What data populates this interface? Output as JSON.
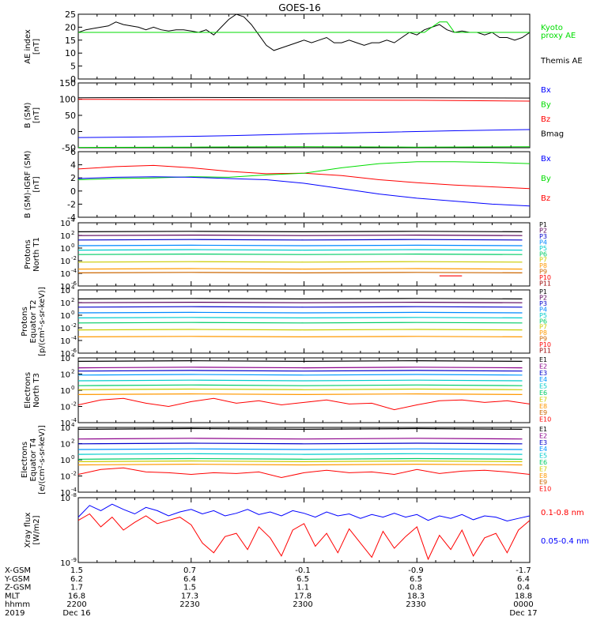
{
  "title": "GOES-16",
  "colors": {
    "black": "#000000",
    "blue": "#0000ff",
    "red": "#ff0000",
    "green": "#00dd00",
    "p_series": [
      "#000000",
      "#5a005a",
      "#0000cc",
      "#0088ff",
      "#00cccc",
      "#00cc66",
      "#cccc00",
      "#ff9900",
      "#cc6600",
      "#ff0000",
      "#990000"
    ],
    "e_series": [
      "#000000",
      "#8b008b",
      "#0000cc",
      "#0099ff",
      "#00cccc",
      "#00cc66",
      "#cccc00",
      "#ff9900",
      "#cc6600",
      "#ff0000",
      "#990000"
    ]
  },
  "chart_data": [
    {
      "id": "ae",
      "type": "line",
      "ylabel": [
        "AE index",
        "[nT]"
      ],
      "ylim": [
        0,
        25
      ],
      "yticks": [
        "25",
        "20",
        "15",
        "10",
        "5",
        "0"
      ],
      "legend": [
        {
          "label": "Kyoto",
          "color": "green"
        },
        {
          "label": "proxy AE",
          "color": "green"
        },
        {
          "label": "Themis AE",
          "color": "black"
        }
      ],
      "series": [
        {
          "name": "Themis AE",
          "color": "black",
          "x": [
            0,
            2,
            4,
            6,
            8,
            10,
            12,
            14,
            16,
            18,
            20,
            22,
            24,
            26,
            28,
            30,
            32,
            34,
            36,
            38,
            40,
            42,
            44,
            46,
            48,
            50,
            52,
            54,
            56,
            58,
            60,
            62,
            64,
            66,
            68,
            70,
            72,
            74,
            76,
            78,
            80,
            82,
            84,
            86,
            88,
            90,
            92,
            94,
            96,
            98,
            100,
            102,
            104,
            106,
            108,
            110,
            112,
            114,
            116,
            118,
            120
          ],
          "values": [
            18,
            19,
            19.5,
            20,
            20.5,
            22,
            21,
            20.5,
            20,
            19,
            20,
            19,
            18.5,
            19,
            19,
            18.5,
            18,
            19,
            17,
            20,
            23,
            25,
            24,
            21,
            17,
            13,
            11,
            12,
            13,
            14,
            15,
            14,
            15,
            16,
            14,
            14,
            15,
            14,
            13,
            14,
            14,
            15,
            14,
            16,
            18,
            17,
            19,
            20,
            21,
            19,
            18,
            18.5,
            18,
            18,
            17,
            18,
            16,
            16,
            15,
            16,
            18
          ]
        },
        {
          "name": "Kyoto proxy AE",
          "color": "green",
          "x": [
            0,
            92,
            94,
            96,
            98,
            100,
            120
          ],
          "values": [
            18,
            18,
            20,
            22,
            22,
            18,
            18
          ]
        }
      ]
    },
    {
      "id": "b_sm",
      "type": "line",
      "ylabel": [
        "B (SM)",
        "[nT]"
      ],
      "ylim": [
        -55,
        155
      ],
      "yticks": [
        "150",
        "100",
        "50",
        "0",
        "-50"
      ],
      "legend": [
        {
          "label": "Bx",
          "color": "blue"
        },
        {
          "label": "By",
          "color": "green"
        },
        {
          "label": "Bz",
          "color": "red"
        },
        {
          "label": "Bmag",
          "color": "black"
        }
      ],
      "series": [
        {
          "name": "Bmag",
          "color": "black",
          "x": [
            0,
            30,
            60,
            90,
            120
          ],
          "values": [
            107,
            108,
            107,
            107,
            106
          ]
        },
        {
          "name": "Bz",
          "color": "red",
          "x": [
            0,
            30,
            60,
            90,
            110,
            120
          ],
          "values": [
            102,
            101,
            100,
            99,
            97,
            96
          ]
        },
        {
          "name": "Bx",
          "color": "blue",
          "x": [
            0,
            20,
            40,
            60,
            80,
            100,
            120
          ],
          "values": [
            -22,
            -20,
            -16,
            -10,
            -5,
            0,
            4
          ]
        },
        {
          "name": "By",
          "color": "green",
          "x": [
            0,
            30,
            60,
            90,
            120
          ],
          "values": [
            -54,
            -53,
            -52,
            -53,
            -52
          ]
        }
      ]
    },
    {
      "id": "b_igrf",
      "type": "line",
      "ylabel": [
        "B (SM)-IGRF (SM)",
        "[nT]"
      ],
      "ylim": [
        -4.5,
        6.5
      ],
      "yticks": [
        "6",
        "4",
        "2",
        "0",
        "-2",
        "-4"
      ],
      "legend": [
        {
          "label": "Bx",
          "color": "blue"
        },
        {
          "label": "By",
          "color": "green"
        },
        {
          "label": "Bz",
          "color": "red"
        }
      ],
      "series": [
        {
          "name": "Bz",
          "color": "red",
          "x": [
            0,
            10,
            20,
            30,
            40,
            50,
            60,
            70,
            80,
            90,
            100,
            110,
            120
          ],
          "values": [
            3.6,
            4.0,
            4.2,
            3.8,
            3.2,
            2.8,
            2.9,
            2.5,
            1.8,
            1.3,
            0.9,
            0.6,
            0.3
          ]
        },
        {
          "name": "By",
          "color": "green",
          "x": [
            0,
            10,
            20,
            30,
            40,
            50,
            60,
            70,
            80,
            90,
            100,
            110,
            120
          ],
          "values": [
            1.8,
            2.0,
            2.1,
            2.3,
            2.2,
            2.6,
            2.9,
            3.8,
            4.5,
            4.8,
            4.8,
            4.7,
            4.5
          ]
        },
        {
          "name": "Bx",
          "color": "blue",
          "x": [
            0,
            10,
            20,
            30,
            40,
            50,
            60,
            70,
            80,
            90,
            100,
            110,
            120
          ],
          "values": [
            2.0,
            2.2,
            2.3,
            2.2,
            2.0,
            1.8,
            1.2,
            0.3,
            -0.6,
            -1.3,
            -1.8,
            -2.3,
            -2.6
          ]
        }
      ]
    },
    {
      "id": "protons_t1",
      "type": "line",
      "log": true,
      "ylabel": [
        "Protons",
        "North T1"
      ],
      "ylim": [
        -6,
        4
      ],
      "yticks": [
        {
          "b": "10",
          "e": "4"
        },
        {
          "b": "10",
          "e": "2"
        },
        {
          "b": "10",
          "e": "0"
        },
        {
          "b": "10",
          "e": "-2"
        },
        {
          "b": "10",
          "e": "-4"
        },
        {
          "b": "10",
          "e": "-6"
        }
      ],
      "legend": [
        "P1",
        "P2",
        "P3",
        "P4",
        "P5",
        "P6",
        "P7",
        "P8",
        "P9",
        "P10",
        "P11"
      ],
      "levels": [
        2.6,
        2.0,
        1.3,
        0.4,
        -0.3,
        -1.0,
        -2.2,
        -3.3,
        -3.9
      ],
      "extra": [
        {
          "color_index": 9,
          "x": [
            96,
            102
          ],
          "values": [
            -4.4,
            -4.4
          ]
        }
      ]
    },
    {
      "id": "protons_t2",
      "type": "line",
      "log": true,
      "ylabel": [
        "Protons",
        "Equator T2",
        "[p/(cm²-s-sr-keV)]"
      ],
      "ylim": [
        -6,
        4
      ],
      "yticks": [
        {
          "b": "10",
          "e": "4"
        },
        {
          "b": "10",
          "e": "2"
        },
        {
          "b": "10",
          "e": "0"
        },
        {
          "b": "10",
          "e": "-2"
        },
        {
          "b": "10",
          "e": "-4"
        },
        {
          "b": "10",
          "e": "-6"
        }
      ],
      "legend": [
        "P1",
        "P2",
        "P3",
        "P4",
        "P5",
        "P6",
        "P7",
        "P8",
        "P9",
        "P10",
        "P11"
      ],
      "levels": [
        2.6,
        2.0,
        1.3,
        0.4,
        -0.4,
        -1.2,
        -2.3,
        -3.4
      ]
    },
    {
      "id": "electrons_t3",
      "type": "line",
      "log": true,
      "ylabel": [
        "Electrons",
        "North T3"
      ],
      "ylim": [
        -4,
        4
      ],
      "yticks": [
        {
          "b": "10",
          "e": "4"
        },
        {
          "b": "10",
          "e": "2"
        },
        {
          "b": "10",
          "e": "0"
        },
        {
          "b": "10",
          "e": "-2"
        },
        {
          "b": "10",
          "e": "-4"
        }
      ],
      "legend": [
        "E1",
        "E2",
        "E3",
        "E4",
        "E5",
        "E6",
        "E7",
        "E8",
        "E9",
        "E10"
      ],
      "levels": [
        3.6,
        2.8,
        2.4,
        1.9,
        1.2,
        0.6,
        0.1,
        -0.5
      ],
      "noisy": {
        "color_index": 9,
        "x": [
          0,
          6,
          12,
          18,
          24,
          30,
          36,
          42,
          48,
          54,
          60,
          66,
          72,
          78,
          84,
          90,
          96,
          102,
          108,
          114,
          120
        ],
        "values": [
          -1.8,
          -1.2,
          -1.0,
          -1.6,
          -2.0,
          -1.4,
          -1.0,
          -1.6,
          -1.3,
          -1.8,
          -1.5,
          -1.2,
          -1.7,
          -1.6,
          -2.4,
          -1.8,
          -1.3,
          -1.2,
          -1.5,
          -1.3,
          -1.7
        ]
      }
    },
    {
      "id": "electrons_t4",
      "type": "line",
      "log": true,
      "ylabel": [
        "Electrons",
        "Equator T4",
        "[e/(cm²-s-sr-keV)]"
      ],
      "ylim": [
        -4,
        4
      ],
      "yticks": [
        {
          "b": "10",
          "e": "4"
        },
        {
          "b": "10",
          "e": "2"
        },
        {
          "b": "10",
          "e": "0"
        },
        {
          "b": "10",
          "e": "-2"
        },
        {
          "b": "10",
          "e": "-4"
        }
      ],
      "legend": [
        "E1",
        "E2",
        "E3",
        "E4",
        "E5",
        "E6",
        "E7",
        "E8",
        "E9",
        "E10"
      ],
      "levels": [
        3.8,
        2.6,
        2.0,
        1.3,
        0.7,
        0.1,
        -0.2,
        -0.6
      ],
      "noisy": {
        "color_index": 9,
        "x": [
          0,
          6,
          12,
          18,
          24,
          30,
          36,
          42,
          48,
          54,
          60,
          66,
          72,
          78,
          84,
          90,
          96,
          102,
          108,
          114,
          120
        ],
        "values": [
          -1.8,
          -1.2,
          -1.0,
          -1.5,
          -1.6,
          -1.8,
          -1.6,
          -1.7,
          -1.5,
          -2.2,
          -1.6,
          -1.3,
          -1.6,
          -1.5,
          -1.8,
          -1.2,
          -1.7,
          -1.4,
          -1.3,
          -1.5,
          -1.8
        ]
      }
    },
    {
      "id": "xray",
      "type": "line",
      "log": true,
      "ylabel": [
        "Xray flux",
        "[W/m2]"
      ],
      "ylim": [
        -9,
        -8
      ],
      "yticks": [
        {
          "b": "10",
          "e": "-8"
        },
        {
          "b": "10",
          "e": "-9"
        }
      ],
      "legend": [
        {
          "label": "0.1-0.8 nm",
          "color": "red"
        },
        {
          "label": "0.05-0.4 nm",
          "color": "blue"
        }
      ],
      "series": [
        {
          "name": "0.05-0.4 nm",
          "color": "blue",
          "x": [
            0,
            3,
            6,
            9,
            12,
            15,
            18,
            21,
            24,
            27,
            30,
            33,
            36,
            39,
            42,
            45,
            48,
            51,
            54,
            57,
            60,
            63,
            66,
            69,
            72,
            75,
            78,
            81,
            84,
            87,
            90,
            93,
            96,
            99,
            102,
            105,
            108,
            111,
            114,
            117,
            120
          ],
          "values": [
            -8.3,
            -8.12,
            -8.2,
            -8.1,
            -8.18,
            -8.25,
            -8.15,
            -8.2,
            -8.28,
            -8.22,
            -8.18,
            -8.25,
            -8.2,
            -8.28,
            -8.24,
            -8.18,
            -8.26,
            -8.22,
            -8.28,
            -8.2,
            -8.24,
            -8.3,
            -8.22,
            -8.28,
            -8.25,
            -8.32,
            -8.26,
            -8.3,
            -8.24,
            -8.3,
            -8.26,
            -8.35,
            -8.28,
            -8.32,
            -8.26,
            -8.34,
            -8.28,
            -8.3,
            -8.36,
            -8.32,
            -8.28
          ]
        },
        {
          "name": "0.1-0.8 nm",
          "color": "red",
          "x": [
            0,
            3,
            6,
            9,
            12,
            15,
            18,
            21,
            24,
            27,
            30,
            33,
            36,
            39,
            42,
            45,
            48,
            51,
            54,
            57,
            60,
            63,
            66,
            69,
            72,
            75,
            78,
            81,
            84,
            87,
            90,
            93,
            96,
            99,
            102,
            105,
            108,
            111,
            114,
            117,
            120
          ],
          "values": [
            -8.35,
            -8.25,
            -8.45,
            -8.3,
            -8.5,
            -8.38,
            -8.28,
            -8.4,
            -8.35,
            -8.3,
            -8.42,
            -8.7,
            -8.85,
            -8.6,
            -8.55,
            -8.8,
            -8.45,
            -8.62,
            -8.9,
            -8.5,
            -8.4,
            -8.75,
            -8.55,
            -8.85,
            -8.48,
            -8.7,
            -8.92,
            -8.52,
            -8.78,
            -8.6,
            -8.45,
            -8.95,
            -8.58,
            -8.8,
            -8.5,
            -8.9,
            -8.62,
            -8.55,
            -8.85,
            -8.5,
            -8.35
          ]
        }
      ]
    }
  ],
  "ephemeris": {
    "rows": [
      {
        "label": "X-GSM",
        "values": [
          "1.5",
          "0.7",
          "-0.1",
          "-0.9",
          "-1.7"
        ]
      },
      {
        "label": "Y-GSM",
        "values": [
          "6.2",
          "6.4",
          "6.5",
          "6.5",
          "6.4"
        ]
      },
      {
        "label": "Z-GSM",
        "values": [
          "1.7",
          "1.5",
          "1.1",
          "0.8",
          "0.4"
        ]
      },
      {
        "label": "MLT",
        "values": [
          "16.8",
          "17.3",
          "17.8",
          "18.3",
          "18.8"
        ]
      },
      {
        "label": "hhmm",
        "values": [
          "2200",
          "2230",
          "2300",
          "2330",
          "0000"
        ]
      }
    ],
    "year": "2019",
    "date_start": "Dec 16",
    "date_end": "Dec 17"
  }
}
